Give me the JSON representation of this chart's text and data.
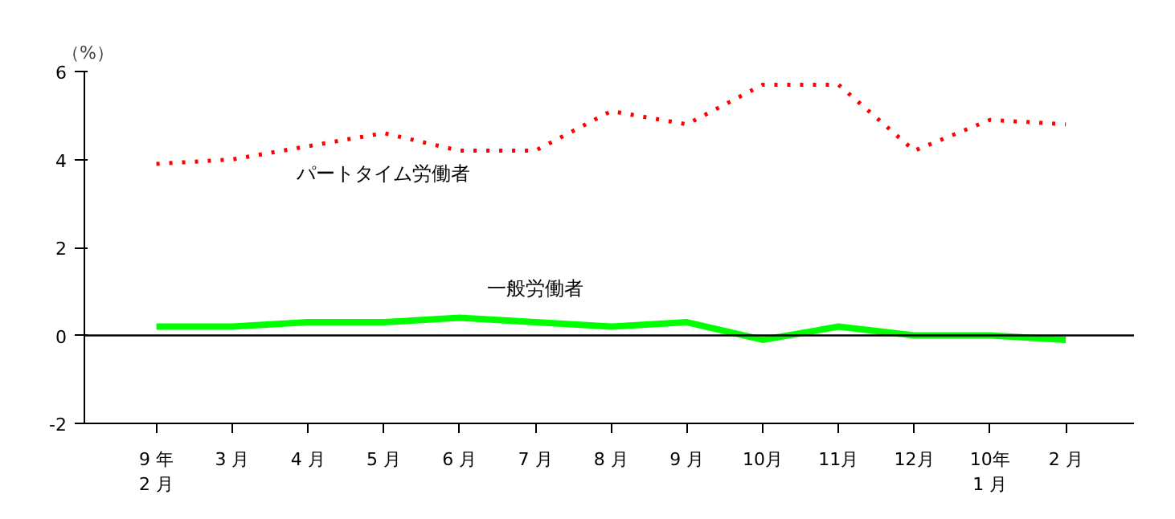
{
  "chart_data": {
    "type": "line",
    "ylabel": "（%）",
    "categories": [
      "9 年\n2 月",
      "3 月",
      "4 月",
      "5 月",
      "6 月",
      "7 月",
      "8 月",
      "9 月",
      "10月",
      "11月",
      "12月",
      "10年\n1 月",
      "2 月"
    ],
    "series": [
      {
        "name": "パートタイム労働者",
        "color": "#ff0000",
        "line_style": "dotted",
        "values": [
          3.9,
          4.0,
          4.3,
          4.6,
          4.2,
          4.2,
          5.1,
          4.8,
          5.7,
          5.7,
          4.2,
          4.9,
          4.8
        ]
      },
      {
        "name": "一般労働者",
        "color": "#00ff00",
        "line_style": "solid",
        "values": [
          0.2,
          0.2,
          0.3,
          0.3,
          0.4,
          0.3,
          0.2,
          0.3,
          -0.1,
          0.2,
          0.0,
          0.0,
          -0.1
        ]
      }
    ],
    "ylim": [
      -2,
      6
    ],
    "yticks": [
      -2,
      0,
      2,
      4,
      6
    ],
    "ref_lines": [
      {
        "axis": "y",
        "value": 0
      }
    ],
    "grid": false
  }
}
